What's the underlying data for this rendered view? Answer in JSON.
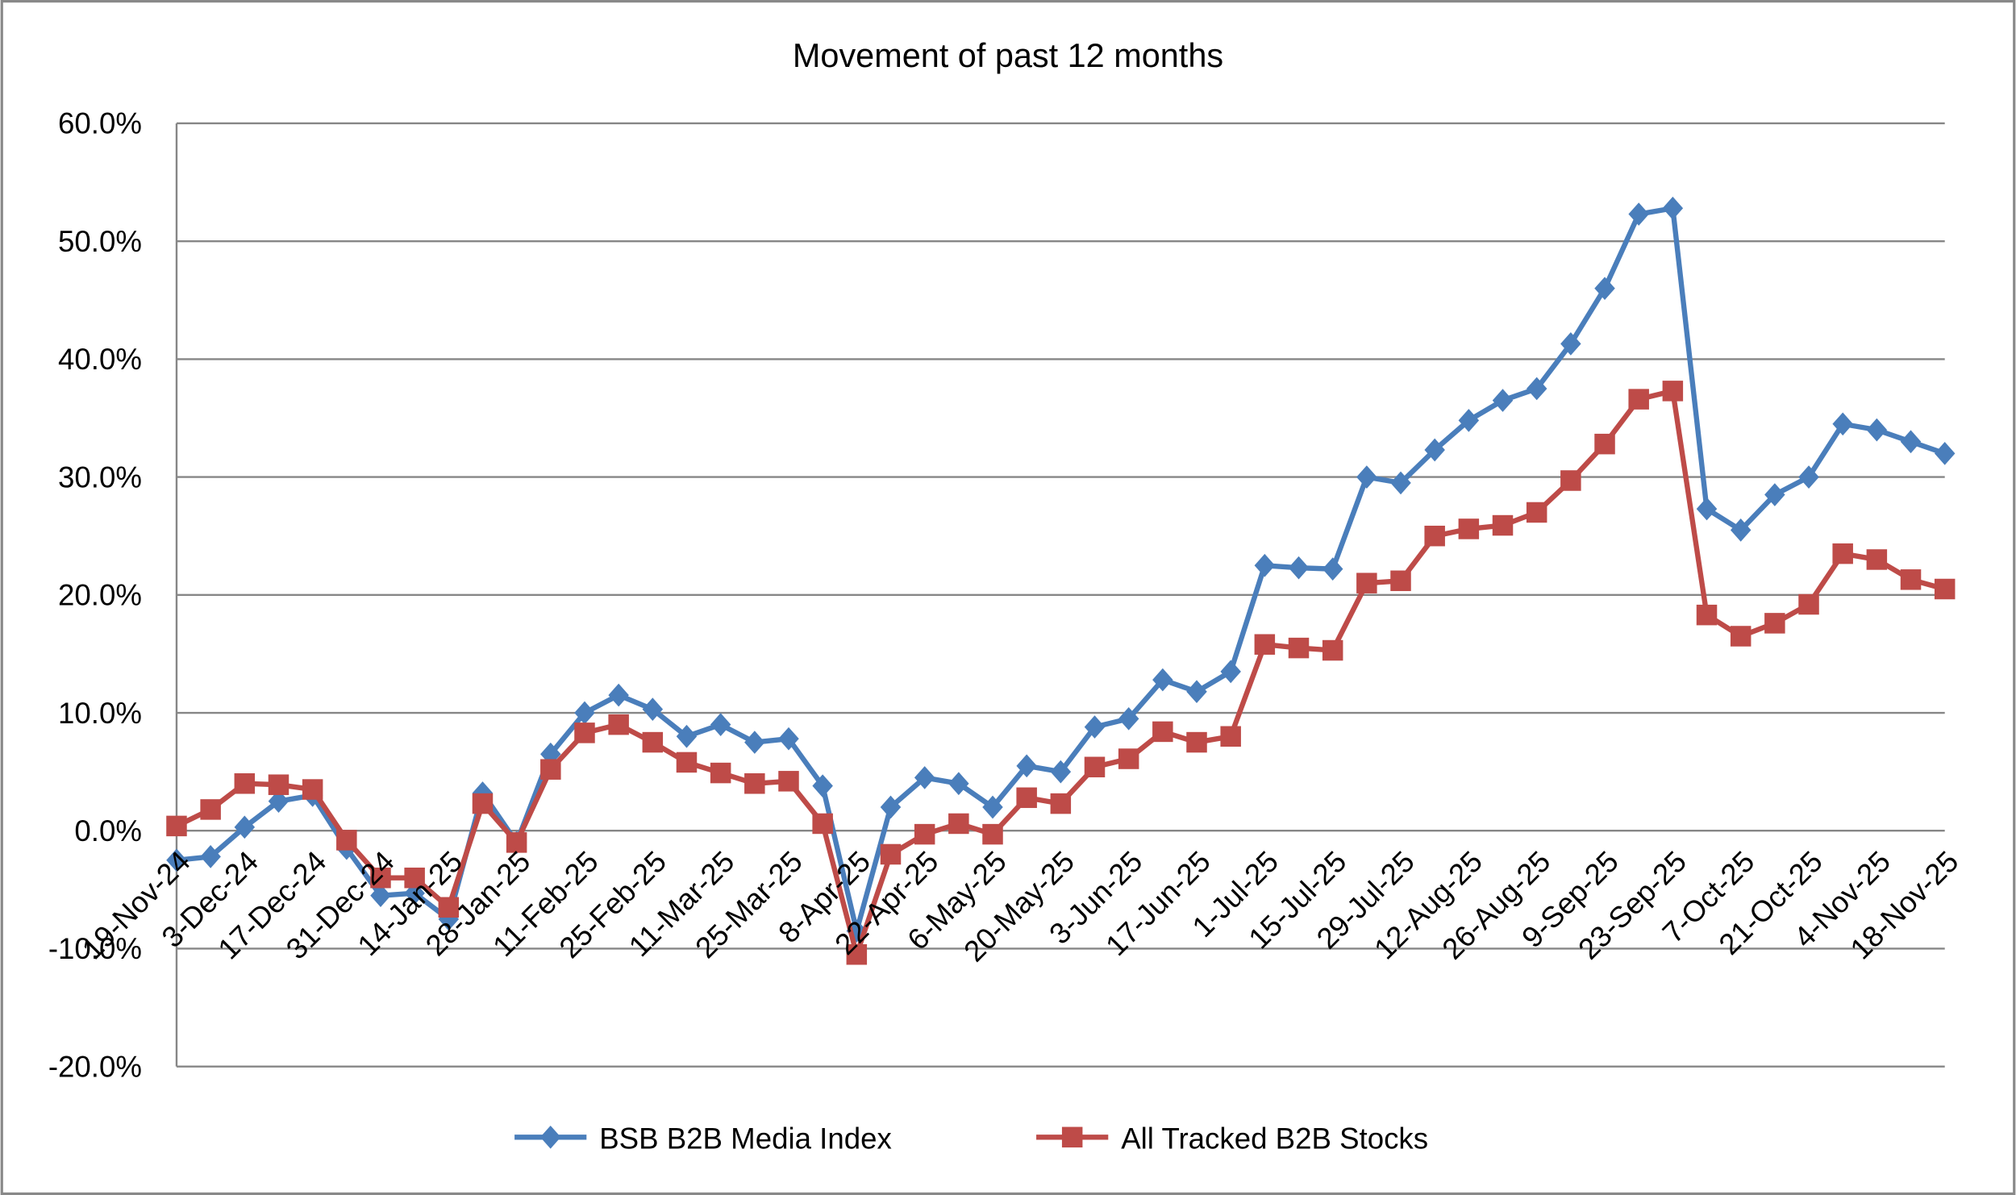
{
  "chart_data": {
    "type": "line",
    "title": "Movement of past 12 months",
    "categories": [
      "19-Nov-24",
      null,
      "3-Dec-24",
      null,
      "17-Dec-24",
      null,
      "31-Dec-24",
      null,
      "14-Jan-25",
      null,
      "28-Jan-25",
      null,
      "11-Feb-25",
      null,
      "25-Feb-25",
      null,
      "11-Mar-25",
      null,
      "25-Mar-25",
      null,
      "8-Apr-25",
      null,
      "22-Apr-25",
      null,
      "6-May-25",
      null,
      "20-May-25",
      null,
      "3-Jun-25",
      null,
      "17-Jun-25",
      null,
      "1-Jul-25",
      null,
      "15-Jul-25",
      null,
      "29-Jul-25",
      null,
      "12-Aug-25",
      null,
      "26-Aug-25",
      null,
      "9-Sep-25",
      null,
      "23-Sep-25",
      null,
      "7-Oct-25",
      null,
      "21-Oct-25",
      null,
      "4-Nov-25",
      null,
      "18-Nov-25"
    ],
    "series": [
      {
        "name": "BSB B2B Media Index",
        "color": "#4a7ebb",
        "marker": "diamond",
        "values": [
          -2.5,
          -2.2,
          0.3,
          2.5,
          3.0,
          -1.5,
          -5.5,
          -5.3,
          -7.5,
          3.2,
          -1.0,
          6.5,
          10.0,
          11.5,
          10.3,
          8.0,
          9.0,
          7.5,
          7.8,
          3.8,
          -8.5,
          2.0,
          4.5,
          4.0,
          2.0,
          5.5,
          5.0,
          8.8,
          9.5,
          12.8,
          11.8,
          13.5,
          22.5,
          22.3,
          22.2,
          30.0,
          29.5,
          32.3,
          34.8,
          36.5,
          37.5,
          41.3,
          46.0,
          52.3,
          52.8,
          27.3,
          25.5,
          28.5,
          30.0,
          34.5,
          34.0,
          33.0,
          32.0
        ]
      },
      {
        "name": "All Tracked B2B Stocks",
        "color": "#be4b48",
        "marker": "square",
        "values": [
          0.4,
          1.8,
          4.0,
          3.9,
          3.5,
          -0.8,
          -4.0,
          -4.0,
          -6.5,
          2.3,
          -1.0,
          5.2,
          8.3,
          9.0,
          7.5,
          5.8,
          4.9,
          4.0,
          4.2,
          0.6,
          -10.5,
          -2.0,
          -0.3,
          0.6,
          -0.3,
          2.8,
          2.3,
          5.4,
          6.1,
          8.4,
          7.5,
          8.0,
          15.8,
          15.5,
          15.3,
          21.0,
          21.2,
          25.0,
          25.6,
          25.9,
          27.0,
          29.7,
          32.8,
          36.6,
          37.3,
          18.3,
          16.5,
          17.6,
          19.2,
          23.5,
          23.0,
          21.3,
          20.5
        ]
      }
    ],
    "ylim": [
      -20,
      60
    ],
    "yticks": [
      {
        "value": -20,
        "label": "-20.0%"
      },
      {
        "value": -10,
        "label": "-10.0%"
      },
      {
        "value": 0,
        "label": "0.0%"
      },
      {
        "value": 10,
        "label": "10.0%"
      },
      {
        "value": 20,
        "label": "20.0%"
      },
      {
        "value": 30,
        "label": "30.0%"
      },
      {
        "value": 40,
        "label": "40.0%"
      },
      {
        "value": 50,
        "label": "50.0%"
      },
      {
        "value": 60,
        "label": "60.0%"
      }
    ],
    "grid": true,
    "legend": "bottom"
  }
}
